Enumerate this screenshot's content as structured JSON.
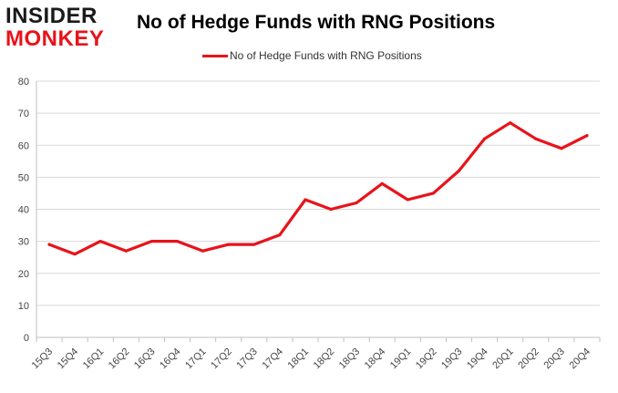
{
  "brand": {
    "top": "INSIDER",
    "bottom": "MONKEY"
  },
  "colors": {
    "series": "#e8131a",
    "grid": "#d9d9d9",
    "axis": "#bfbfbf"
  },
  "chart_data": {
    "type": "line",
    "title": "No of Hedge Funds with RNG Positions",
    "legend": "top-center",
    "grid": true,
    "categories": [
      "15Q3",
      "15Q4",
      "16Q1",
      "16Q2",
      "16Q3",
      "16Q4",
      "17Q1",
      "17Q2",
      "17Q3",
      "17Q4",
      "18Q1",
      "18Q2",
      "18Q3",
      "18Q4",
      "19Q1",
      "19Q2",
      "19Q3",
      "19Q4",
      "20Q1",
      "20Q2",
      "20Q3",
      "20Q4"
    ],
    "series": [
      {
        "name": "No of Hedge Funds with RNG Positions",
        "values": [
          29,
          26,
          30,
          27,
          30,
          30,
          27,
          29,
          29,
          32,
          43,
          40,
          42,
          48,
          43,
          45,
          52,
          62,
          67,
          62,
          59,
          63
        ]
      }
    ],
    "ylim": [
      0,
      80
    ],
    "yticks": [
      0,
      10,
      20,
      30,
      40,
      50,
      60,
      70,
      80
    ]
  }
}
